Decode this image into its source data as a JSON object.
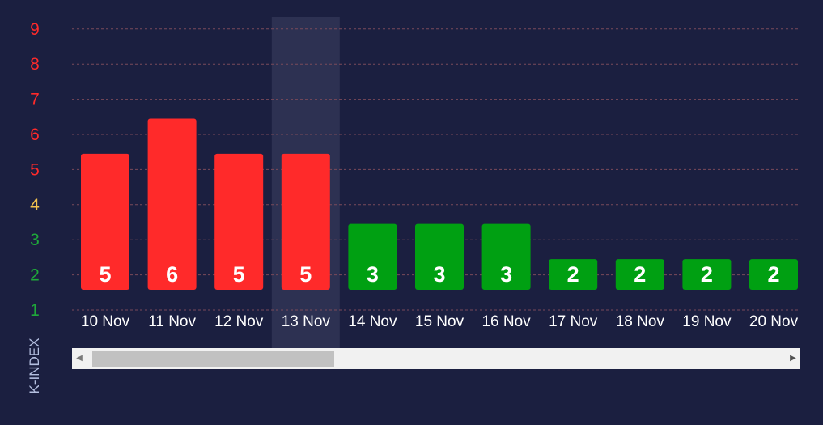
{
  "chart_data": {
    "type": "bar",
    "ylabel": "K-INDEX",
    "y_ticks": [
      1,
      2,
      3,
      4,
      5,
      6,
      7,
      8,
      9
    ],
    "ylim": [
      1,
      9
    ],
    "grid": true,
    "categories": [
      "10 Nov",
      "11 Nov",
      "12 Nov",
      "13 Nov",
      "14 Nov",
      "15 Nov",
      "16 Nov",
      "17 Nov",
      "18 Nov",
      "19 Nov",
      "20 Nov"
    ],
    "values": [
      5,
      6,
      5,
      5,
      3,
      3,
      3,
      2,
      2,
      2,
      2
    ],
    "highlighted_category": "13 Nov"
  },
  "colors": {
    "background": "#1b1f40",
    "storm_bar": "#ff2a2a",
    "quiet_bar": "#00a012",
    "tick_low": "#1fa83a",
    "tick_mid": "#f2c14e",
    "tick_high": "#ff2a2a",
    "grid": "#7a4a5a",
    "category_text": "#ffffff",
    "axis_title": "#b4bfe0",
    "highlight": "#2d3152"
  },
  "scrollbar": {
    "left_arrow_icon": "◀",
    "right_arrow_icon": "▶"
  }
}
